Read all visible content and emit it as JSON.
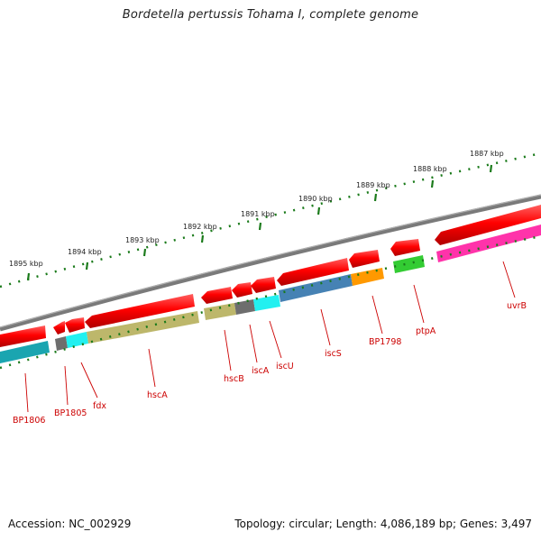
{
  "title": "Bordetella pertussis Tohama I, complete genome",
  "accession": "Accession: NC_002929",
  "stats": "Topology: circular; Length: 4,086,189 bp; Genes: 3,497",
  "colors": {
    "backbone": "#808080",
    "cds_forward": "#ff0000",
    "tick_green": "#1a7a1a",
    "label_red": "#cc0000"
  },
  "scale": {
    "tick_labels": [
      "1887 kbp",
      "1888 kbp",
      "1889 kbp",
      "1890 kbp",
      "1891 kbp",
      "1892 kbp",
      "1893 kbp",
      "1894 kbp",
      "1895 kbp"
    ]
  },
  "gene_labels": [
    "BP1806",
    "BP1805",
    "fdx",
    "hscA",
    "hscB",
    "iscA",
    "iscU",
    "iscS",
    "BP1798",
    "ptpA",
    "uvrB"
  ]
}
